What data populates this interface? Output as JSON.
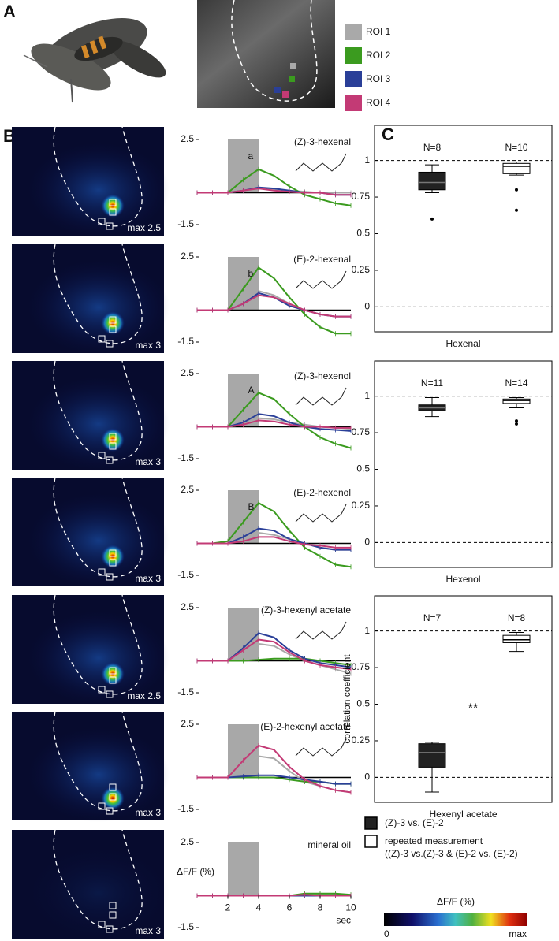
{
  "panel_labels": {
    "a": "A",
    "b": "B",
    "c": "C"
  },
  "roi_legend": [
    {
      "label": "ROI 1",
      "color": "#a9a9a9"
    },
    {
      "label": "ROI 2",
      "color": "#3b9b1f"
    },
    {
      "label": "ROI 3",
      "color": "#2a3f98"
    },
    {
      "label": "ROI 4",
      "color": "#c33a75"
    }
  ],
  "traces": {
    "y_label": "ΔF/F (%)",
    "x_label": "sec",
    "xlim": [
      0,
      10
    ],
    "xticks": [
      2,
      4,
      6,
      8,
      10
    ],
    "ylim": [
      -1.5,
      2.5
    ],
    "yticks": [
      -1.5,
      2.5
    ],
    "stimulus": [
      2,
      4
    ],
    "x": [
      0,
      1,
      2,
      3,
      4,
      5,
      6,
      7,
      8,
      9,
      10
    ],
    "panels": [
      {
        "odor": "(Z)-3-hexenal",
        "max_label": "max 2.5",
        "peak_label": "a",
        "series": [
          [
            0,
            0,
            0,
            0.1,
            0.2,
            0.15,
            0.1,
            0.05,
            0,
            0,
            0
          ],
          [
            0,
            0,
            0,
            0.6,
            1.1,
            0.8,
            0.3,
            -0.1,
            -0.3,
            -0.5,
            -0.6
          ],
          [
            0,
            0,
            0,
            0.1,
            0.25,
            0.2,
            0.1,
            0,
            0,
            -0.1,
            -0.1
          ],
          [
            0,
            0,
            0,
            0.1,
            0.2,
            0.1,
            0.05,
            0,
            0,
            -0.1,
            -0.1
          ]
        ]
      },
      {
        "odor": "(E)-2-hexenal",
        "max_label": "max 3",
        "peak_label": "b",
        "series": [
          [
            0,
            0,
            0,
            0.3,
            0.9,
            0.7,
            0.3,
            0,
            -0.2,
            -0.3,
            -0.3
          ],
          [
            0,
            0,
            0,
            1.0,
            2.0,
            1.5,
            0.6,
            -0.2,
            -0.8,
            -1.1,
            -1.1
          ],
          [
            0,
            0,
            0,
            0.3,
            0.8,
            0.6,
            0.2,
            0,
            -0.2,
            -0.3,
            -0.3
          ],
          [
            0,
            0,
            0,
            0.3,
            0.7,
            0.6,
            0.3,
            0,
            -0.2,
            -0.3,
            -0.3
          ]
        ]
      },
      {
        "odor": "(Z)-3-hexenol",
        "max_label": "max 3",
        "peak_label": "A",
        "series": [
          [
            0,
            0,
            0,
            0.1,
            0.4,
            0.35,
            0.2,
            0.1,
            0,
            -0.05,
            -0.1
          ],
          [
            0,
            0,
            0,
            0.8,
            1.6,
            1.3,
            0.6,
            0,
            -0.5,
            -0.8,
            -1.0
          ],
          [
            0,
            0,
            0,
            0.2,
            0.6,
            0.5,
            0.2,
            0,
            -0.1,
            -0.15,
            -0.2
          ],
          [
            0,
            0,
            0,
            0.1,
            0.3,
            0.25,
            0.1,
            0,
            0,
            -0.05,
            -0.05
          ]
        ]
      },
      {
        "odor": "(E)-2-hexenol",
        "max_label": "max 3",
        "peak_label": "B",
        "series": [
          [
            0,
            0,
            0,
            0.2,
            0.5,
            0.4,
            0.2,
            0,
            -0.2,
            -0.3,
            -0.3
          ],
          [
            0,
            0,
            0.1,
            1.0,
            1.9,
            1.5,
            0.6,
            -0.2,
            -0.6,
            -1.0,
            -1.1
          ],
          [
            0,
            0,
            0,
            0.3,
            0.7,
            0.6,
            0.2,
            0,
            -0.2,
            -0.3,
            -0.3
          ],
          [
            0,
            0,
            0,
            0.1,
            0.3,
            0.3,
            0.1,
            -0.05,
            -0.1,
            -0.2,
            -0.2
          ]
        ]
      },
      {
        "odor": "(Z)-3-hexenyl acetate",
        "max_label": "max 2.5",
        "series": [
          [
            0,
            0,
            0,
            0.4,
            0.8,
            0.7,
            0.3,
            0,
            -0.2,
            -0.4,
            -0.6
          ],
          [
            0,
            0,
            0,
            0,
            0.05,
            0.1,
            0.1,
            0.1,
            0,
            -0.1,
            -0.2
          ],
          [
            0,
            0,
            0,
            0.6,
            1.3,
            1.1,
            0.5,
            0.1,
            -0.1,
            -0.2,
            -0.3
          ],
          [
            0,
            0,
            0,
            0.5,
            1.0,
            0.9,
            0.4,
            0,
            -0.2,
            -0.3,
            -0.4
          ]
        ]
      },
      {
        "odor": "(E)-2-hexenyl acetate",
        "max_label": "max 3",
        "series": [
          [
            0,
            0,
            0,
            0.5,
            1.0,
            0.9,
            0.3,
            -0.2,
            -0.4,
            -0.6,
            -0.7
          ],
          [
            0,
            0,
            0,
            0,
            0,
            0,
            -0.1,
            -0.2,
            -0.2,
            -0.3,
            -0.3
          ],
          [
            0,
            0,
            0,
            0.05,
            0.1,
            0.1,
            0,
            -0.1,
            -0.2,
            -0.3,
            -0.3
          ],
          [
            0,
            0,
            0,
            0.8,
            1.5,
            1.3,
            0.5,
            -0.1,
            -0.4,
            -0.6,
            -0.7
          ]
        ]
      },
      {
        "odor": "mineral oil",
        "max_label": "max 3",
        "series": [
          [
            0,
            0,
            0,
            0,
            0,
            0,
            0,
            0.05,
            0.05,
            0.05,
            0
          ],
          [
            0,
            0,
            0,
            0,
            0,
            0,
            0,
            0.1,
            0.1,
            0.1,
            0.05
          ],
          [
            0,
            0,
            0,
            0,
            0,
            0,
            0,
            0,
            0,
            0,
            0
          ],
          [
            0,
            0,
            0,
            0,
            0,
            0,
            0,
            0.05,
            0,
            0,
            0
          ]
        ]
      }
    ]
  },
  "boxplots": {
    "y_label": "correlation coefficient",
    "ylim": [
      -0.17,
      1.24
    ],
    "yticks": [
      0,
      0.25,
      0.5,
      0.75,
      1
    ],
    "reference_lines": [
      0,
      1
    ],
    "panels": [
      {
        "group": "Hexenal",
        "boxes": [
          {
            "n_label": "N=8",
            "whisker_low": 0.78,
            "q1": 0.8,
            "median": 0.85,
            "q3": 0.92,
            "whisker_high": 0.97,
            "outliers": [
              0.6
            ]
          },
          {
            "n_label": "N=10",
            "whisker_low": 0.9,
            "q1": 0.91,
            "median": 0.96,
            "q3": 0.98,
            "whisker_high": 0.99,
            "outliers": [
              0.8,
              0.66
            ]
          }
        ]
      },
      {
        "group": "Hexenol",
        "boxes": [
          {
            "n_label": "N=11",
            "whisker_low": 0.86,
            "q1": 0.9,
            "median": 0.92,
            "q3": 0.94,
            "whisker_high": 0.99,
            "outliers": []
          },
          {
            "n_label": "N=14",
            "whisker_low": 0.92,
            "q1": 0.95,
            "median": 0.97,
            "q3": 0.98,
            "whisker_high": 0.99,
            "outliers": [
              0.83,
              0.81
            ]
          }
        ]
      },
      {
        "group": "Hexenyl acetate",
        "significance": "**",
        "boxes": [
          {
            "n_label": "N=7",
            "whisker_low": -0.1,
            "q1": 0.07,
            "median": 0.17,
            "q3": 0.23,
            "whisker_high": 0.24,
            "outliers": []
          },
          {
            "n_label": "N=8",
            "whisker_low": 0.86,
            "q1": 0.92,
            "median": 0.94,
            "q3": 0.97,
            "whisker_high": 0.99,
            "outliers": []
          }
        ]
      }
    ]
  },
  "legend": [
    {
      "label": "(Z)-3 vs. (E)-2",
      "fill": "#222222"
    },
    {
      "label": "repeated measurement",
      "sublabel": "((Z)-3 vs.(Z)-3 & (E)-2 vs. (E)-2)",
      "fill": "#ffffff"
    }
  ],
  "colorbar": {
    "title": "ΔF/F (%)",
    "min_label": "0",
    "max_label": "max"
  }
}
